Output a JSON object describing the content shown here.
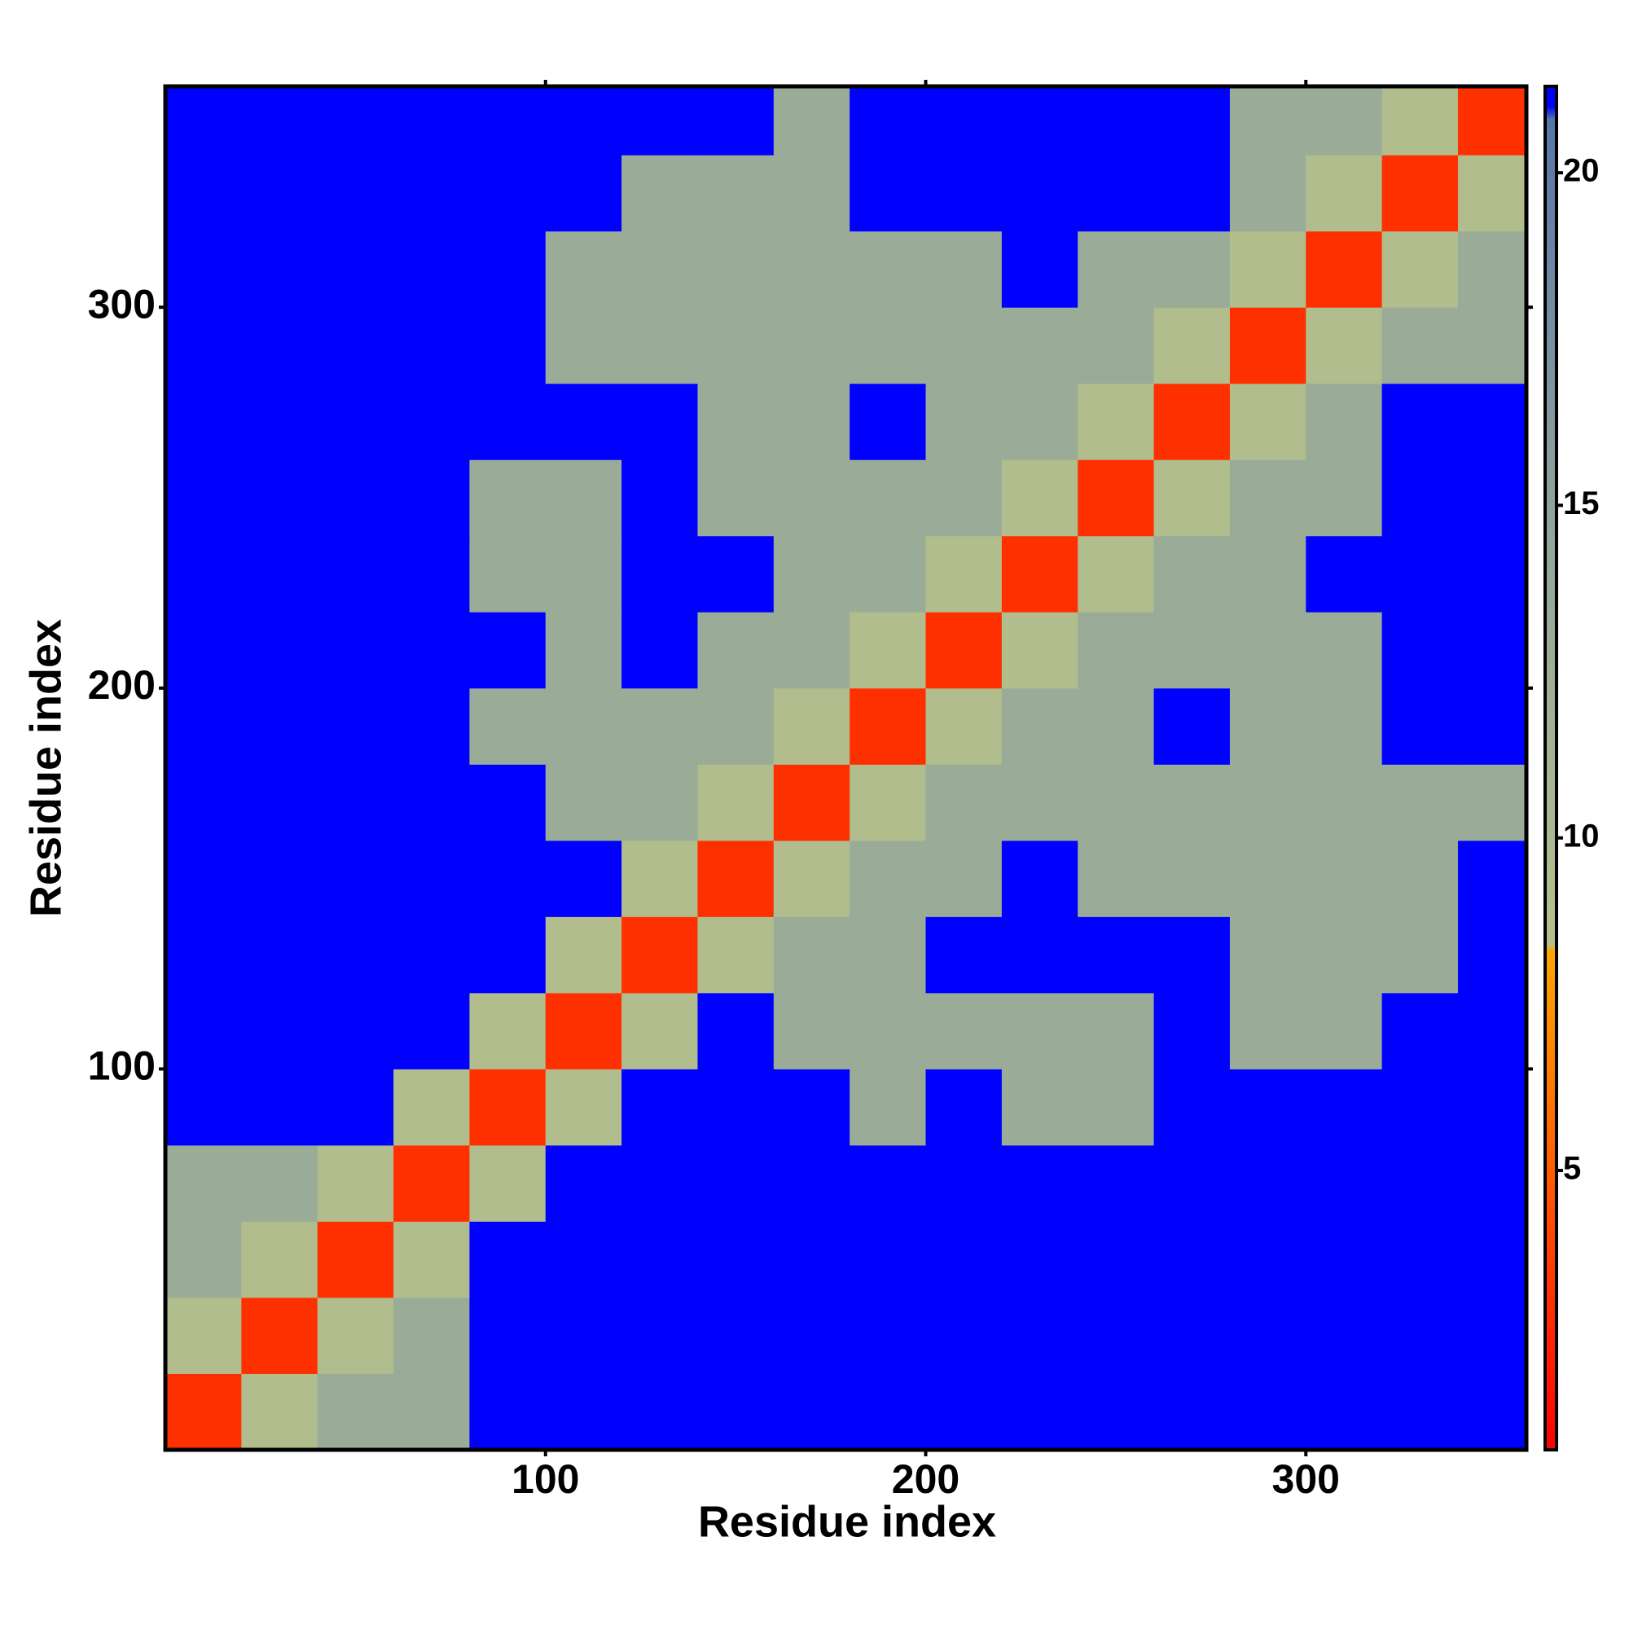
{
  "chart_data": {
    "type": "heatmap",
    "x_label": "Residue index",
    "y_label": "Residue index",
    "xbins": [
      0,
      20,
      40,
      60,
      80,
      100,
      120,
      140,
      160,
      180,
      200,
      220,
      240,
      260,
      280,
      300,
      320,
      340,
      358
    ],
    "ybins": [
      0,
      20,
      40,
      60,
      80,
      100,
      120,
      140,
      160,
      180,
      200,
      220,
      240,
      260,
      280,
      300,
      320,
      340,
      358
    ],
    "xlim": [
      0,
      358
    ],
    "ylim": [
      0,
      358
    ],
    "xticks": [
      100,
      200,
      300
    ],
    "yticks": [
      100,
      200,
      300
    ],
    "z": [
      [
        3,
        9,
        13,
        13,
        21,
        21,
        21,
        21,
        21,
        21,
        21,
        21,
        21,
        21,
        21,
        21,
        21,
        21
      ],
      [
        9,
        3,
        9,
        13,
        21,
        21,
        21,
        21,
        21,
        21,
        21,
        21,
        21,
        21,
        21,
        21,
        21,
        21
      ],
      [
        13,
        9,
        3,
        9,
        21,
        21,
        21,
        21,
        21,
        21,
        21,
        21,
        21,
        21,
        21,
        21,
        21,
        21
      ],
      [
        13,
        13,
        9,
        3,
        9,
        21,
        21,
        21,
        21,
        21,
        21,
        21,
        21,
        21,
        21,
        21,
        21,
        21
      ],
      [
        21,
        21,
        21,
        9,
        3,
        9,
        21,
        21,
        21,
        13,
        21,
        13,
        13,
        21,
        21,
        21,
        21,
        21
      ],
      [
        21,
        21,
        21,
        21,
        9,
        3,
        9,
        21,
        13,
        13,
        13,
        13,
        13,
        21,
        13,
        13,
        21,
        21
      ],
      [
        21,
        21,
        21,
        21,
        21,
        9,
        3,
        9,
        13,
        13,
        21,
        21,
        21,
        21,
        13,
        13,
        13,
        21
      ],
      [
        21,
        21,
        21,
        21,
        21,
        21,
        9,
        3,
        9,
        13,
        13,
        21,
        13,
        13,
        13,
        13,
        13,
        21
      ],
      [
        21,
        21,
        21,
        21,
        21,
        13,
        13,
        9,
        3,
        9,
        13,
        13,
        13,
        13,
        13,
        13,
        13,
        13
      ],
      [
        21,
        21,
        21,
        21,
        13,
        13,
        13,
        13,
        9,
        3,
        9,
        13,
        13,
        21,
        13,
        13,
        21,
        21
      ],
      [
        21,
        21,
        21,
        21,
        21,
        13,
        21,
        13,
        13,
        9,
        3,
        9,
        13,
        13,
        13,
        13,
        21,
        21
      ],
      [
        21,
        21,
        21,
        21,
        13,
        13,
        21,
        21,
        13,
        13,
        9,
        3,
        9,
        13,
        13,
        21,
        21,
        21
      ],
      [
        21,
        21,
        21,
        21,
        13,
        13,
        21,
        13,
        13,
        13,
        13,
        9,
        3,
        9,
        13,
        13,
        21,
        21
      ],
      [
        21,
        21,
        21,
        21,
        21,
        21,
        21,
        13,
        13,
        21,
        13,
        13,
        9,
        3,
        9,
        13,
        21,
        21
      ],
      [
        21,
        21,
        21,
        21,
        21,
        13,
        13,
        13,
        13,
        13,
        13,
        13,
        13,
        9,
        3,
        9,
        13,
        13
      ],
      [
        21,
        21,
        21,
        21,
        21,
        13,
        13,
        13,
        13,
        13,
        13,
        21,
        13,
        13,
        9,
        3,
        9,
        13
      ],
      [
        21,
        21,
        21,
        21,
        21,
        21,
        13,
        13,
        13,
        21,
        21,
        21,
        21,
        21,
        13,
        9,
        3,
        9
      ],
      [
        21,
        21,
        21,
        21,
        21,
        21,
        21,
        21,
        13,
        21,
        21,
        21,
        21,
        21,
        13,
        13,
        9,
        3
      ]
    ],
    "colorscale": [
      {
        "value": 0.8,
        "color": "#ff0000"
      },
      {
        "value": 8.3,
        "color": "#ffa500"
      },
      {
        "value": 8.4,
        "color": "#b4c08c"
      },
      {
        "value": 15,
        "color": "#8fa39c"
      },
      {
        "value": 20.8,
        "color": "#5676a8"
      },
      {
        "value": 21,
        "color": "#0000ff"
      },
      {
        "value": 21.3,
        "color": "#0000ff"
      }
    ],
    "clim": [
      0.8,
      21.3
    ],
    "cticks": [
      5,
      10,
      15,
      20
    ]
  }
}
